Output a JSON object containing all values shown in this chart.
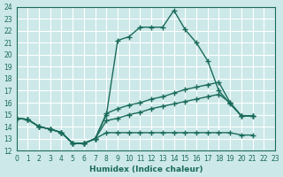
{
  "xlabel": "Humidex (Indice chaleur)",
  "bg_color": "#cce8e8",
  "grid_color": "#ffffff",
  "line_color": "#1a6b5a",
  "xlim": [
    0,
    23
  ],
  "ylim": [
    12,
    24
  ],
  "xticks": [
    0,
    1,
    2,
    3,
    4,
    5,
    6,
    7,
    8,
    9,
    10,
    11,
    12,
    13,
    14,
    15,
    16,
    17,
    18,
    19,
    20,
    21,
    22,
    23
  ],
  "yticks": [
    12,
    13,
    14,
    15,
    16,
    17,
    18,
    19,
    20,
    21,
    22,
    23,
    24
  ],
  "line1_x": [
    0,
    1,
    2,
    3,
    4,
    5,
    6,
    7,
    8,
    9,
    10,
    11,
    12,
    13,
    14,
    15,
    16,
    17,
    18,
    19,
    20,
    21,
    22,
    23
  ],
  "line1_y": [
    14.7,
    14.6,
    14.0,
    13.8,
    13.5,
    12.6,
    12.6,
    13.0,
    15.0,
    21.2,
    21.5,
    22.3,
    22.3,
    22.3,
    23.7,
    22.1,
    21.0,
    19.5,
    17.0,
    15.9,
    14.9,
    14.9,
    null,
    null
  ],
  "line2_x": [
    0,
    1,
    2,
    3,
    4,
    5,
    6,
    7,
    8,
    9,
    10,
    11,
    12,
    13,
    14,
    15,
    16,
    17,
    18,
    19,
    20,
    21,
    22,
    23
  ],
  "line2_y": [
    14.7,
    14.6,
    14.0,
    13.8,
    13.5,
    12.6,
    12.6,
    13.0,
    15.1,
    15.5,
    15.8,
    16.0,
    16.3,
    16.5,
    16.8,
    17.1,
    17.3,
    17.5,
    17.7,
    16.0,
    14.9,
    14.9,
    null,
    null
  ],
  "line3_x": [
    0,
    1,
    2,
    3,
    4,
    5,
    6,
    7,
    8,
    9,
    10,
    11,
    12,
    13,
    14,
    15,
    16,
    17,
    18,
    19,
    20,
    21,
    22,
    23
  ],
  "line3_y": [
    14.7,
    14.6,
    14.0,
    13.8,
    13.5,
    12.6,
    12.6,
    13.0,
    14.5,
    14.7,
    15.0,
    15.2,
    15.5,
    15.7,
    15.9,
    16.1,
    16.3,
    16.5,
    16.7,
    16.0,
    14.9,
    14.9,
    null,
    null
  ],
  "line4_x": [
    0,
    1,
    2,
    3,
    4,
    5,
    6,
    7,
    8,
    9,
    10,
    11,
    12,
    13,
    14,
    15,
    16,
    17,
    18,
    19,
    20,
    21,
    22,
    23
  ],
  "line4_y": [
    14.7,
    14.6,
    14.0,
    13.8,
    13.5,
    12.6,
    12.6,
    13.0,
    13.5,
    13.5,
    13.5,
    13.5,
    13.5,
    13.5,
    13.5,
    13.5,
    13.5,
    13.5,
    13.5,
    13.5,
    13.3,
    13.3,
    null,
    null
  ]
}
